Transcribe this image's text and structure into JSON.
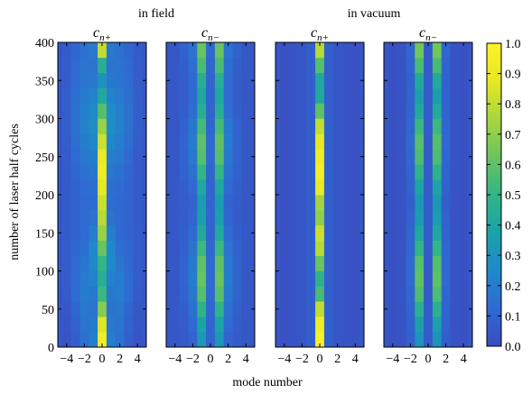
{
  "chart_data": {
    "type": "heatmap",
    "group_labels": [
      "in field",
      "in vacuum"
    ],
    "panels": [
      {
        "title_base": "c",
        "title_sub": "n+",
        "group": "in field",
        "columns": [
          {
            "mode": -4,
            "values": [
              0.03,
              0.04,
              0.05,
              0.06,
              0.07,
              0.07,
              0.07,
              0.07,
              0.06,
              0.06,
              0.06,
              0.06,
              0.06,
              0.07,
              0.08,
              0.08,
              0.08,
              0.07,
              0.07,
              0.06
            ]
          },
          {
            "mode": -3,
            "values": [
              0.08,
              0.09,
              0.11,
              0.13,
              0.13,
              0.12,
              0.11,
              0.1,
              0.1,
              0.1,
              0.1,
              0.11,
              0.12,
              0.14,
              0.15,
              0.15,
              0.14,
              0.13,
              0.12,
              0.11
            ]
          },
          {
            "mode": -2,
            "values": [
              0.15,
              0.16,
              0.18,
              0.2,
              0.19,
              0.17,
              0.14,
              0.12,
              0.12,
              0.12,
              0.13,
              0.15,
              0.18,
              0.2,
              0.22,
              0.21,
              0.19,
              0.17,
              0.16,
              0.15
            ]
          },
          {
            "mode": -1,
            "values": [
              0.2,
              0.18,
              0.16,
              0.18,
              0.22,
              0.25,
              0.24,
              0.2,
              0.16,
              0.13,
              0.14,
              0.17,
              0.2,
              0.24,
              0.27,
              0.26,
              0.22,
              0.18,
              0.16,
              0.18
            ]
          },
          {
            "mode": 0,
            "values": [
              0.94,
              0.86,
              0.68,
              0.52,
              0.45,
              0.5,
              0.62,
              0.72,
              0.78,
              0.82,
              0.88,
              0.92,
              0.9,
              0.82,
              0.72,
              0.58,
              0.42,
              0.3,
              0.45,
              0.8
            ]
          },
          {
            "mode": 1,
            "values": [
              0.2,
              0.18,
              0.16,
              0.18,
              0.22,
              0.25,
              0.24,
              0.2,
              0.16,
              0.13,
              0.14,
              0.17,
              0.2,
              0.24,
              0.27,
              0.26,
              0.22,
              0.18,
              0.16,
              0.18
            ]
          },
          {
            "mode": 2,
            "values": [
              0.15,
              0.16,
              0.18,
              0.2,
              0.19,
              0.17,
              0.14,
              0.12,
              0.12,
              0.12,
              0.13,
              0.15,
              0.18,
              0.2,
              0.22,
              0.21,
              0.19,
              0.17,
              0.16,
              0.15
            ]
          },
          {
            "mode": 3,
            "values": [
              0.08,
              0.09,
              0.11,
              0.13,
              0.13,
              0.12,
              0.11,
              0.1,
              0.1,
              0.1,
              0.1,
              0.11,
              0.12,
              0.14,
              0.15,
              0.15,
              0.14,
              0.13,
              0.12,
              0.11
            ]
          },
          {
            "mode": 4,
            "values": [
              0.03,
              0.04,
              0.05,
              0.06,
              0.07,
              0.07,
              0.07,
              0.07,
              0.06,
              0.06,
              0.06,
              0.06,
              0.06,
              0.07,
              0.08,
              0.08,
              0.08,
              0.07,
              0.07,
              0.06
            ]
          }
        ]
      },
      {
        "title_base": "c",
        "title_sub": "n−",
        "group": "in field",
        "columns": [
          {
            "mode": -4,
            "values": [
              0.05,
              0.05,
              0.05,
              0.05,
              0.05,
              0.05,
              0.05,
              0.05,
              0.05,
              0.05,
              0.05,
              0.05,
              0.05,
              0.05,
              0.05,
              0.05,
              0.05,
              0.05,
              0.05,
              0.05
            ]
          },
          {
            "mode": -3,
            "values": [
              0.06,
              0.07,
              0.08,
              0.09,
              0.1,
              0.1,
              0.09,
              0.08,
              0.07,
              0.07,
              0.08,
              0.09,
              0.1,
              0.1,
              0.09,
              0.08,
              0.07,
              0.07,
              0.08,
              0.09
            ]
          },
          {
            "mode": -2,
            "values": [
              0.1,
              0.12,
              0.15,
              0.18,
              0.2,
              0.19,
              0.16,
              0.13,
              0.11,
              0.1,
              0.12,
              0.15,
              0.18,
              0.2,
              0.18,
              0.14,
              0.12,
              0.12,
              0.14,
              0.16
            ]
          },
          {
            "mode": -1,
            "values": [
              0.32,
              0.38,
              0.48,
              0.58,
              0.62,
              0.6,
              0.52,
              0.42,
              0.36,
              0.34,
              0.4,
              0.5,
              0.58,
              0.6,
              0.54,
              0.45,
              0.4,
              0.45,
              0.55,
              0.62
            ]
          },
          {
            "mode": 0,
            "values": [
              0.1,
              0.1,
              0.11,
              0.12,
              0.12,
              0.12,
              0.11,
              0.1,
              0.1,
              0.1,
              0.1,
              0.11,
              0.12,
              0.12,
              0.11,
              0.1,
              0.1,
              0.1,
              0.11,
              0.12
            ]
          },
          {
            "mode": 1,
            "values": [
              0.32,
              0.38,
              0.48,
              0.58,
              0.62,
              0.6,
              0.52,
              0.42,
              0.36,
              0.34,
              0.4,
              0.5,
              0.58,
              0.6,
              0.54,
              0.45,
              0.4,
              0.45,
              0.55,
              0.62
            ]
          },
          {
            "mode": 2,
            "values": [
              0.1,
              0.12,
              0.15,
              0.18,
              0.2,
              0.19,
              0.16,
              0.13,
              0.11,
              0.1,
              0.12,
              0.15,
              0.18,
              0.2,
              0.18,
              0.14,
              0.12,
              0.12,
              0.14,
              0.16
            ]
          },
          {
            "mode": 3,
            "values": [
              0.06,
              0.07,
              0.08,
              0.09,
              0.1,
              0.1,
              0.09,
              0.08,
              0.07,
              0.07,
              0.08,
              0.09,
              0.1,
              0.1,
              0.09,
              0.08,
              0.07,
              0.07,
              0.08,
              0.09
            ]
          },
          {
            "mode": 4,
            "values": [
              0.05,
              0.05,
              0.05,
              0.05,
              0.05,
              0.05,
              0.05,
              0.05,
              0.05,
              0.05,
              0.05,
              0.05,
              0.05,
              0.05,
              0.05,
              0.05,
              0.05,
              0.05,
              0.05,
              0.05
            ]
          }
        ]
      },
      {
        "title_base": "c",
        "title_sub": "n+",
        "group": "in vacuum",
        "columns": [
          {
            "mode": -4,
            "values": [
              0.02,
              0.02,
              0.02,
              0.02,
              0.02,
              0.02,
              0.02,
              0.02,
              0.02,
              0.02,
              0.02,
              0.02,
              0.02,
              0.02,
              0.02,
              0.02,
              0.02,
              0.02,
              0.02,
              0.02
            ]
          },
          {
            "mode": -3,
            "values": [
              0.03,
              0.03,
              0.03,
              0.03,
              0.03,
              0.03,
              0.03,
              0.03,
              0.03,
              0.03,
              0.03,
              0.03,
              0.03,
              0.03,
              0.03,
              0.03,
              0.03,
              0.03,
              0.03,
              0.03
            ]
          },
          {
            "mode": -2,
            "values": [
              0.04,
              0.04,
              0.04,
              0.04,
              0.04,
              0.04,
              0.04,
              0.04,
              0.04,
              0.04,
              0.04,
              0.04,
              0.04,
              0.04,
              0.04,
              0.04,
              0.04,
              0.04,
              0.04,
              0.04
            ]
          },
          {
            "mode": -1,
            "values": [
              0.08,
              0.08,
              0.08,
              0.08,
              0.08,
              0.08,
              0.08,
              0.08,
              0.08,
              0.08,
              0.08,
              0.08,
              0.08,
              0.08,
              0.08,
              0.08,
              0.08,
              0.08,
              0.08,
              0.08
            ]
          },
          {
            "mode": 0,
            "values": [
              0.98,
              0.92,
              0.8,
              0.55,
              0.48,
              0.62,
              0.78,
              0.82,
              0.7,
              0.74,
              0.9,
              0.95,
              0.92,
              0.88,
              0.8,
              0.6,
              0.42,
              0.4,
              0.58,
              0.78
            ]
          },
          {
            "mode": 1,
            "values": [
              0.08,
              0.08,
              0.08,
              0.08,
              0.08,
              0.08,
              0.08,
              0.08,
              0.08,
              0.08,
              0.08,
              0.08,
              0.08,
              0.08,
              0.08,
              0.08,
              0.08,
              0.08,
              0.08,
              0.08
            ]
          },
          {
            "mode": 2,
            "values": [
              0.04,
              0.04,
              0.04,
              0.04,
              0.04,
              0.04,
              0.04,
              0.04,
              0.04,
              0.04,
              0.04,
              0.04,
              0.04,
              0.04,
              0.04,
              0.04,
              0.04,
              0.04,
              0.04,
              0.04
            ]
          },
          {
            "mode": 3,
            "values": [
              0.03,
              0.03,
              0.03,
              0.03,
              0.03,
              0.03,
              0.03,
              0.03,
              0.03,
              0.03,
              0.03,
              0.03,
              0.03,
              0.03,
              0.03,
              0.03,
              0.03,
              0.03,
              0.03,
              0.03
            ]
          },
          {
            "mode": 4,
            "values": [
              0.02,
              0.02,
              0.02,
              0.02,
              0.02,
              0.02,
              0.02,
              0.02,
              0.02,
              0.02,
              0.02,
              0.02,
              0.02,
              0.02,
              0.02,
              0.02,
              0.02,
              0.02,
              0.02,
              0.02
            ]
          }
        ]
      },
      {
        "title_base": "c",
        "title_sub": "n−",
        "group": "in vacuum",
        "columns": [
          {
            "mode": -4,
            "values": [
              0.02,
              0.02,
              0.02,
              0.02,
              0.02,
              0.02,
              0.02,
              0.02,
              0.02,
              0.02,
              0.02,
              0.02,
              0.02,
              0.02,
              0.02,
              0.02,
              0.02,
              0.02,
              0.02,
              0.02
            ]
          },
          {
            "mode": -3,
            "values": [
              0.03,
              0.03,
              0.03,
              0.03,
              0.03,
              0.03,
              0.03,
              0.03,
              0.03,
              0.03,
              0.03,
              0.03,
              0.03,
              0.03,
              0.03,
              0.03,
              0.03,
              0.03,
              0.03,
              0.03
            ]
          },
          {
            "mode": -2,
            "values": [
              0.08,
              0.09,
              0.1,
              0.11,
              0.12,
              0.12,
              0.11,
              0.1,
              0.09,
              0.08,
              0.09,
              0.1,
              0.11,
              0.12,
              0.11,
              0.1,
              0.09,
              0.09,
              0.1,
              0.11
            ]
          },
          {
            "mode": -1,
            "values": [
              0.3,
              0.36,
              0.46,
              0.56,
              0.6,
              0.58,
              0.5,
              0.4,
              0.34,
              0.32,
              0.38,
              0.48,
              0.56,
              0.58,
              0.52,
              0.42,
              0.36,
              0.42,
              0.55,
              0.64
            ]
          },
          {
            "mode": 0,
            "values": [
              0.06,
              0.06,
              0.06,
              0.06,
              0.06,
              0.06,
              0.06,
              0.06,
              0.06,
              0.06,
              0.06,
              0.06,
              0.06,
              0.06,
              0.06,
              0.06,
              0.06,
              0.06,
              0.06,
              0.06
            ]
          },
          {
            "mode": 1,
            "values": [
              0.3,
              0.36,
              0.46,
              0.56,
              0.6,
              0.58,
              0.5,
              0.4,
              0.34,
              0.32,
              0.38,
              0.48,
              0.56,
              0.58,
              0.52,
              0.42,
              0.36,
              0.42,
              0.55,
              0.64
            ]
          },
          {
            "mode": 2,
            "values": [
              0.08,
              0.09,
              0.1,
              0.11,
              0.12,
              0.12,
              0.11,
              0.1,
              0.09,
              0.08,
              0.09,
              0.1,
              0.11,
              0.12,
              0.11,
              0.1,
              0.09,
              0.09,
              0.1,
              0.11
            ]
          },
          {
            "mode": 3,
            "values": [
              0.03,
              0.03,
              0.03,
              0.03,
              0.03,
              0.03,
              0.03,
              0.03,
              0.03,
              0.03,
              0.03,
              0.03,
              0.03,
              0.03,
              0.03,
              0.03,
              0.03,
              0.03,
              0.03,
              0.03
            ]
          },
          {
            "mode": 4,
            "values": [
              0.02,
              0.02,
              0.02,
              0.02,
              0.02,
              0.02,
              0.02,
              0.02,
              0.02,
              0.02,
              0.02,
              0.02,
              0.02,
              0.02,
              0.02,
              0.02,
              0.02,
              0.02,
              0.02,
              0.02
            ]
          }
        ]
      }
    ],
    "y_bins_start": 0,
    "y_bins_step": 20,
    "ylim": [
      0,
      400
    ],
    "xlim": [
      -5,
      5
    ],
    "ylabel": "number of laser half cycles",
    "xlabel": "mode number",
    "y_ticks": [
      0,
      50,
      100,
      150,
      200,
      250,
      300,
      350,
      400
    ],
    "y_tick_labels": [
      "0",
      "50",
      "100",
      "150",
      "200",
      "250",
      "300",
      "350",
      "400"
    ],
    "x_ticks": [
      -4,
      -2,
      0,
      2,
      4
    ],
    "x_tick_labels": [
      "−4",
      "−2",
      "0",
      "2",
      "4"
    ],
    "colorbar": {
      "min": 0.0,
      "max": 1.0,
      "ticks": [
        0.0,
        0.1,
        0.2,
        0.3,
        0.4,
        0.5,
        0.6,
        0.7,
        0.8,
        0.9,
        1.0
      ],
      "tick_labels": [
        "0.0",
        "0.1",
        "0.2",
        "0.3",
        "0.4",
        "0.5",
        "0.6",
        "0.7",
        "0.8",
        "0.9",
        "1.0"
      ],
      "colormap": "viridis-like",
      "colors": [
        "#3b4cc0",
        "#2f6ad2",
        "#1f89c9",
        "#1aa3a7",
        "#33b585",
        "#6ac45e",
        "#a8d63e",
        "#e6e822",
        "#fdf22a"
      ]
    }
  }
}
